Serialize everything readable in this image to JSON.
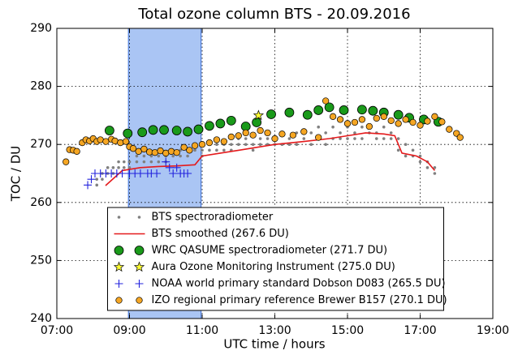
{
  "chart_data": {
    "type": "scatter",
    "title": "Total ozone column BTS - 20.09.2016",
    "xlabel": "UTC time / hours",
    "ylabel": "TOC / DU",
    "xlim": [
      7,
      19
    ],
    "ylim": [
      240,
      290
    ],
    "xticks": [
      {
        "value": 7,
        "label": "07:00"
      },
      {
        "value": 9,
        "label": "09:00"
      },
      {
        "value": 11,
        "label": "11:00"
      },
      {
        "value": 13,
        "label": "13:00"
      },
      {
        "value": 15,
        "label": "15:00"
      },
      {
        "value": 17,
        "label": "17:00"
      },
      {
        "value": 19,
        "label": "19:00"
      }
    ],
    "yticks": [
      240,
      250,
      260,
      270,
      280,
      290
    ],
    "grid": true,
    "legend": "lower center",
    "shaded_span": {
      "x": [
        8.97,
        10.97
      ],
      "color": "#aac5f4"
    },
    "series": [
      {
        "name": "BTS spectroradiometer",
        "color": "#808080",
        "marker": "dot",
        "x": [
          8.1,
          8.1,
          8.25,
          8.25,
          8.4,
          8.4,
          8.55,
          8.55,
          8.7,
          8.7,
          8.85,
          8.85,
          9.0,
          9.0,
          9.2,
          9.2,
          9.4,
          9.4,
          9.6,
          9.6,
          9.8,
          9.8,
          10.0,
          10.0,
          10.2,
          10.2,
          10.4,
          10.4,
          10.6,
          10.6,
          10.8,
          10.8,
          11.0,
          11.0,
          11.2,
          11.2,
          11.4,
          11.4,
          11.6,
          11.6,
          11.8,
          11.8,
          12.0,
          12.0,
          12.2,
          12.2,
          12.4,
          12.4,
          12.6,
          12.6,
          12.8,
          12.8,
          13.0,
          13.0,
          13.2,
          13.2,
          13.4,
          13.4,
          13.6,
          13.6,
          13.8,
          13.8,
          14.0,
          14.0,
          14.2,
          14.2,
          14.4,
          14.4,
          14.6,
          14.6,
          14.8,
          14.8,
          15.0,
          15.0,
          15.2,
          15.2,
          15.4,
          15.4,
          15.6,
          15.6,
          15.8,
          15.8,
          16.0,
          16.0,
          16.2,
          16.2,
          16.4,
          16.4,
          16.6,
          16.6,
          16.8,
          16.8,
          17.0,
          17.0,
          17.2,
          17.2,
          17.4,
          17.4
        ],
        "values": [
          263,
          264,
          264,
          265,
          265,
          266,
          265,
          266,
          266,
          267,
          266,
          267,
          266,
          267,
          267,
          268,
          267,
          268,
          267,
          268,
          267,
          268,
          267,
          268,
          268,
          269,
          268,
          269,
          268,
          269,
          269,
          270,
          268,
          269,
          269,
          270,
          269,
          270,
          269,
          270,
          269,
          270,
          270,
          271,
          270,
          271,
          269,
          270,
          270,
          271,
          270,
          271,
          270,
          271,
          270,
          272,
          270,
          271,
          270,
          272,
          271,
          272,
          270,
          272,
          271,
          273,
          270,
          272,
          271,
          273,
          271,
          272,
          271,
          273,
          271,
          272,
          271,
          273,
          272,
          273,
          271,
          272,
          271,
          273,
          272,
          271,
          269,
          271,
          268,
          270,
          268,
          269,
          267,
          268,
          266,
          267,
          265,
          266
        ]
      },
      {
        "name": "BTS smoothed (267.6 DU)",
        "color": "#e41a1c",
        "marker": "line",
        "x": [
          8.34,
          8.8,
          9.3,
          9.8,
          10.3,
          10.8,
          11.0,
          11.5,
          12.0,
          12.5,
          13.0,
          13.8,
          14.5,
          15.0,
          15.5,
          16.0,
          16.3,
          16.5,
          16.9,
          17.2,
          17.4
        ],
        "values": [
          262.9,
          265.5,
          266.0,
          266.2,
          266.3,
          266.5,
          268.0,
          268.5,
          269.0,
          269.5,
          270.0,
          270.5,
          271.0,
          271.5,
          272.0,
          271.8,
          271.5,
          268.5,
          268.0,
          267.0,
          265.5
        ]
      },
      {
        "name": "WRC QASUME spectroradiometer (271.7 DU)",
        "color": "#1a9a1a",
        "marker": "bigcircle",
        "x": [
          8.45,
          8.95,
          9.35,
          9.65,
          9.95,
          10.3,
          10.6,
          10.9,
          11.2,
          11.5,
          11.8,
          12.2,
          12.5,
          12.9,
          13.4,
          13.9,
          14.2,
          14.5,
          14.9,
          15.4,
          15.7,
          16.0,
          16.4,
          16.7,
          17.1,
          17.5
        ],
        "values": [
          272.4,
          271.9,
          272.1,
          272.5,
          272.5,
          272.4,
          272.2,
          272.6,
          273.2,
          273.6,
          274.1,
          273.1,
          273.8,
          275.2,
          275.5,
          275.1,
          275.9,
          276.4,
          275.9,
          276.0,
          275.8,
          275.5,
          275.1,
          274.6,
          274.3,
          273.9
        ]
      },
      {
        "name": "Aura Ozone Monitoring Instrument (275.0 DU)",
        "color": "#ffff33",
        "marker": "star",
        "x": [
          12.55
        ],
        "values": [
          275.0
        ]
      },
      {
        "name": "NOAA world primary standard Dobson D083 (265.5 DU)",
        "color": "#2222dd",
        "marker": "plus",
        "x": [
          7.85,
          7.95,
          8.05,
          8.2,
          8.35,
          8.5,
          8.65,
          8.8,
          9.0,
          9.15,
          9.3,
          9.5,
          9.6,
          9.75,
          10.0,
          10.1,
          10.2,
          10.3,
          10.4,
          10.5,
          10.6
        ],
        "values": [
          263,
          264,
          265,
          265,
          265,
          265,
          265,
          265,
          265,
          265,
          265,
          265,
          265,
          265,
          267,
          266,
          265,
          266,
          265,
          265,
          265
        ]
      },
      {
        "name": "IZO regional primary reference Brewer B157 (270.1 DU)",
        "color": "#f5a623",
        "marker": "circle",
        "x": [
          7.25,
          7.35,
          7.45,
          7.55,
          7.7,
          7.8,
          7.9,
          8.0,
          8.1,
          8.2,
          8.35,
          8.5,
          8.6,
          8.75,
          8.9,
          9.0,
          9.1,
          9.25,
          9.4,
          9.55,
          9.7,
          9.85,
          10.0,
          10.15,
          10.3,
          10.5,
          10.65,
          10.8,
          11.0,
          11.2,
          11.4,
          11.6,
          11.8,
          12.0,
          12.2,
          12.4,
          12.6,
          12.8,
          13.0,
          13.2,
          13.5,
          13.8,
          14.2,
          14.4,
          14.6,
          14.8,
          15.0,
          15.2,
          15.4,
          15.6,
          15.8,
          16.0,
          16.2,
          16.4,
          16.6,
          16.8,
          17.0,
          17.2,
          17.4,
          17.6,
          17.8,
          18.0,
          18.1
        ],
        "values": [
          267,
          269.1,
          269.0,
          268.8,
          270.3,
          270.8,
          270.6,
          271.0,
          270.5,
          270.8,
          270.5,
          270.9,
          270.6,
          270.3,
          270.5,
          269.6,
          269.3,
          268.8,
          269.2,
          268.7,
          268.6,
          268.9,
          268.5,
          268.8,
          268.6,
          269.5,
          269.0,
          269.8,
          270.0,
          270.3,
          270.8,
          270.5,
          271.3,
          271.5,
          272.0,
          271.6,
          272.4,
          272.0,
          271.0,
          271.8,
          271.6,
          272.2,
          271.2,
          277.5,
          274.8,
          274.3,
          273.6,
          273.8,
          274.3,
          273.1,
          274.5,
          274.8,
          274.1,
          273.6,
          274.3,
          273.8,
          273.3,
          274.0,
          274.8,
          273.9,
          272.6,
          271.9,
          271.2
        ]
      }
    ]
  }
}
